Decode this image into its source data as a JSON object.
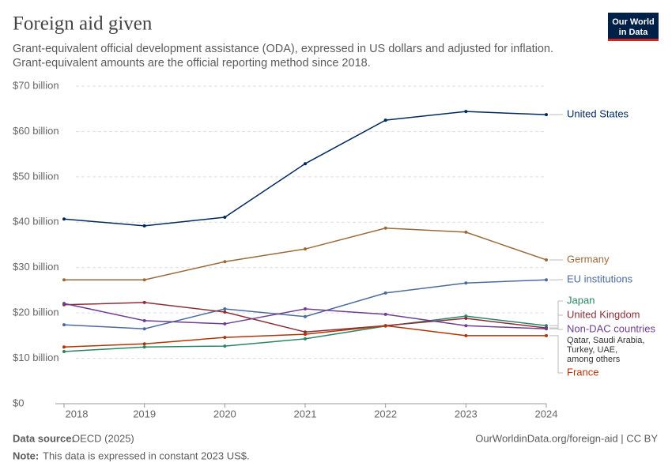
{
  "chart_data": {
    "type": "line",
    "title": "Foreign aid given",
    "subtitle": [
      "Grant-equivalent official development assistance (ODA), expressed in US dollars and adjusted for inflation.",
      "Grant-equivalent amounts are the official reporting method since 2018."
    ],
    "logo": [
      "Our World",
      "in Data"
    ],
    "x": [
      2018,
      2019,
      2020,
      2021,
      2022,
      2023,
      2024
    ],
    "xlim": [
      2018,
      2024
    ],
    "xticks": [
      2018,
      2019,
      2020,
      2021,
      2022,
      2023,
      2024
    ],
    "ylim": [
      0,
      70
    ],
    "yticks": [
      {
        "value": 0,
        "label": "$0"
      },
      {
        "value": 10,
        "label": "$10 billion"
      },
      {
        "value": 20,
        "label": "$20 billion"
      },
      {
        "value": 30,
        "label": "$30 billion"
      },
      {
        "value": 40,
        "label": "$40 billion"
      },
      {
        "value": 50,
        "label": "$50 billion"
      },
      {
        "value": 60,
        "label": "$60 billion"
      },
      {
        "value": 70,
        "label": "$70 billion"
      }
    ],
    "grid": true,
    "series": [
      {
        "name": "United States",
        "color": "#00295b",
        "values": [
          40.7,
          39.2,
          41.1,
          52.9,
          62.5,
          64.4,
          63.7
        ]
      },
      {
        "name": "Germany",
        "color": "#9a6a3a",
        "values": [
          27.3,
          27.3,
          31.3,
          34.1,
          38.7,
          37.8,
          31.7
        ]
      },
      {
        "name": "EU institutions",
        "color": "#4c6a9c",
        "values": [
          17.4,
          16.5,
          20.9,
          19.2,
          24.4,
          26.6,
          27.3
        ]
      },
      {
        "name": "Japan",
        "color": "#2c8465",
        "values": [
          11.5,
          12.5,
          12.7,
          14.3,
          17.1,
          19.3,
          17.2
        ]
      },
      {
        "name": "United Kingdom",
        "color": "#883039",
        "values": [
          21.8,
          22.3,
          20.2,
          15.8,
          17.2,
          18.8,
          16.7
        ]
      },
      {
        "name": "Non-DAC countries",
        "color": "#6d3e91",
        "values": [
          22.1,
          18.3,
          17.6,
          20.9,
          19.7,
          17.2,
          16.5
        ],
        "annotation": "Qatar, Saudi Arabia, Turkey, UAE, among others"
      },
      {
        "name": "France",
        "color": "#b13507",
        "values": [
          12.5,
          13.2,
          14.6,
          15.3,
          17.2,
          15.0,
          15.0
        ]
      }
    ],
    "source_label": "Data source:",
    "source": "OECD (2025)",
    "url": "OurWorldinData.org/foreign-aid | CC BY",
    "note_label": "Note:",
    "note": "This data is expressed in constant 2023 US$."
  }
}
